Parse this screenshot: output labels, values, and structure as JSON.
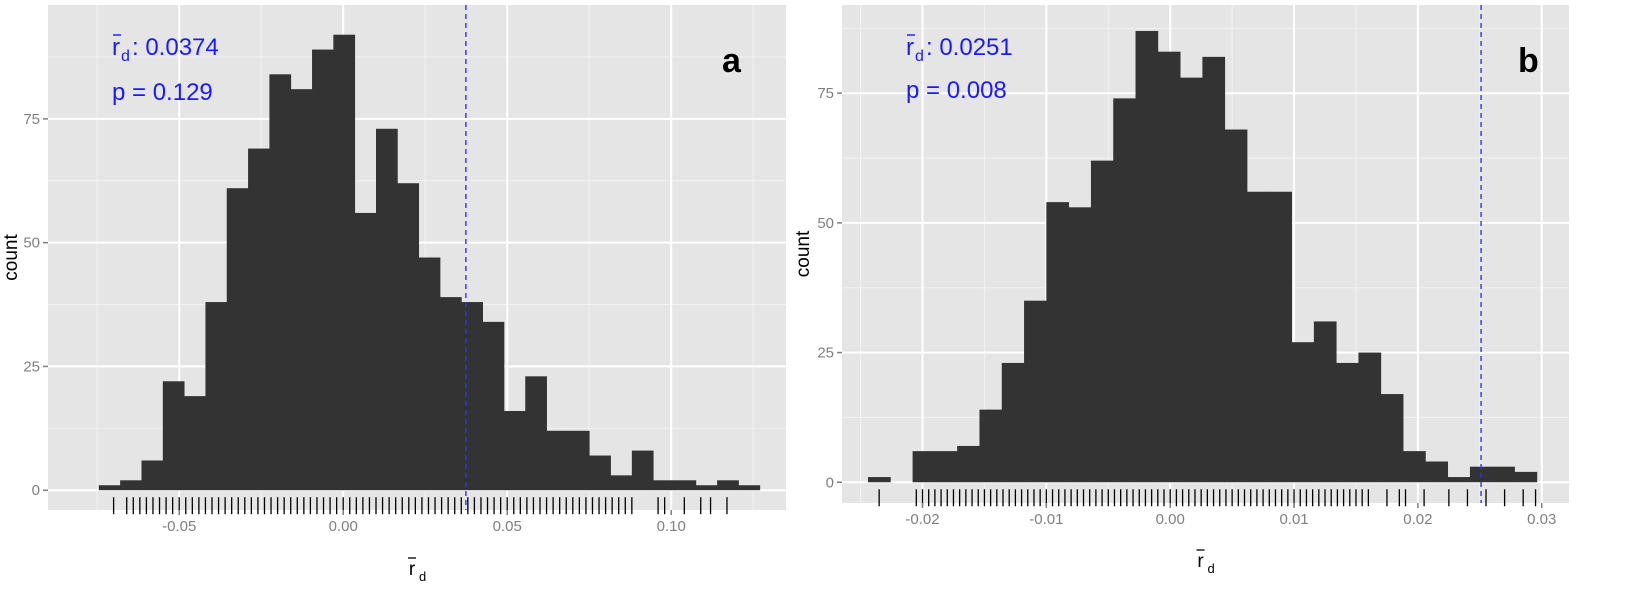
{
  "chart_data": [
    {
      "type": "histogram",
      "panel_label": "a",
      "ylabel": "count",
      "xlabel": "r",
      "xlabel_subscript": "d",
      "annotation": {
        "symbol": "r",
        "subscript": "d",
        "value_text": ": 0.0374",
        "p_text": "p = 0.129"
      },
      "observed_line": 0.0374,
      "xlim": [
        -0.09,
        0.135
      ],
      "ylim": [
        -4,
        98
      ],
      "xticks": [
        -0.05,
        0.0,
        0.05,
        0.1
      ],
      "xtick_labels": [
        "-0.05",
        "0.00",
        "0.05",
        "0.10"
      ],
      "yticks": [
        0,
        25,
        50,
        75
      ],
      "ytick_labels": [
        "0",
        "25",
        "50",
        "75"
      ],
      "bin_start": -0.0745,
      "bin_width": 0.0065,
      "counts": [
        1,
        2,
        6,
        22,
        19,
        38,
        61,
        69,
        84,
        81,
        89,
        92,
        56,
        73,
        62,
        47,
        39,
        38,
        34,
        16,
        23,
        12,
        12,
        7,
        3,
        8,
        2,
        2,
        1,
        2,
        1
      ],
      "rug": [
        -0.07,
        -0.066,
        -0.064,
        -0.062,
        -0.06,
        -0.058,
        -0.056,
        -0.054,
        -0.052,
        -0.05,
        -0.048,
        -0.046,
        -0.044,
        -0.042,
        -0.04,
        -0.038,
        -0.036,
        -0.034,
        -0.032,
        -0.03,
        -0.028,
        -0.026,
        -0.024,
        -0.022,
        -0.02,
        -0.018,
        -0.016,
        -0.014,
        -0.012,
        -0.01,
        -0.008,
        -0.006,
        -0.004,
        -0.002,
        0.0,
        0.002,
        0.004,
        0.006,
        0.008,
        0.01,
        0.012,
        0.014,
        0.016,
        0.018,
        0.02,
        0.022,
        0.024,
        0.026,
        0.028,
        0.03,
        0.032,
        0.034,
        0.036,
        0.038,
        0.04,
        0.042,
        0.044,
        0.046,
        0.048,
        0.05,
        0.052,
        0.054,
        0.056,
        0.058,
        0.06,
        0.062,
        0.064,
        0.066,
        0.068,
        0.07,
        0.072,
        0.074,
        0.076,
        0.078,
        0.08,
        0.082,
        0.084,
        0.086,
        0.088,
        0.096,
        0.098,
        0.104,
        0.109,
        0.112,
        0.117
      ]
    },
    {
      "type": "histogram",
      "panel_label": "b",
      "ylabel": "count",
      "xlabel": "r",
      "xlabel_subscript": "d",
      "annotation": {
        "symbol": "r",
        "subscript": "d",
        "value_text": ": 0.0251",
        "p_text": "p = 0.008"
      },
      "observed_line": 0.0251,
      "xlim": [
        -0.0265,
        0.0322
      ],
      "ylim": [
        -4,
        92
      ],
      "xticks": [
        -0.02,
        -0.01,
        0.0,
        0.01,
        0.02,
        0.03
      ],
      "xtick_labels": [
        "-0.02",
        "-0.01",
        "0.00",
        "0.01",
        "0.02",
        "0.03"
      ],
      "yticks": [
        0,
        25,
        50,
        75
      ],
      "ytick_labels": [
        "0",
        "25",
        "50",
        "75"
      ],
      "bin_start": -0.0244,
      "bin_width": 0.0018,
      "counts": [
        1,
        0,
        6,
        6,
        7,
        14,
        23,
        35,
        54,
        53,
        62,
        74,
        87,
        83,
        78,
        82,
        68,
        56,
        56,
        27,
        31,
        23,
        25,
        17,
        6,
        4,
        1,
        3,
        3,
        2
      ],
      "rug": [
        -0.0235,
        -0.0205,
        -0.02,
        -0.0195,
        -0.019,
        -0.0185,
        -0.018,
        -0.0175,
        -0.017,
        -0.0165,
        -0.016,
        -0.0155,
        -0.015,
        -0.0145,
        -0.014,
        -0.0135,
        -0.013,
        -0.0125,
        -0.012,
        -0.0115,
        -0.011,
        -0.0105,
        -0.01,
        -0.0095,
        -0.009,
        -0.0085,
        -0.008,
        -0.0075,
        -0.007,
        -0.0065,
        -0.006,
        -0.0055,
        -0.005,
        -0.0045,
        -0.004,
        -0.0035,
        -0.003,
        -0.0025,
        -0.002,
        -0.0015,
        -0.001,
        -0.0005,
        0.0,
        0.0005,
        0.001,
        0.0015,
        0.002,
        0.0025,
        0.003,
        0.0035,
        0.004,
        0.0045,
        0.005,
        0.0055,
        0.006,
        0.0065,
        0.007,
        0.0075,
        0.008,
        0.0085,
        0.009,
        0.0095,
        0.01,
        0.0105,
        0.011,
        0.0115,
        0.012,
        0.0125,
        0.013,
        0.0135,
        0.014,
        0.0145,
        0.015,
        0.0155,
        0.016,
        0.0175,
        0.0185,
        0.019,
        0.0205,
        0.0225,
        0.024,
        0.0255,
        0.027,
        0.0285,
        0.0295
      ]
    }
  ]
}
